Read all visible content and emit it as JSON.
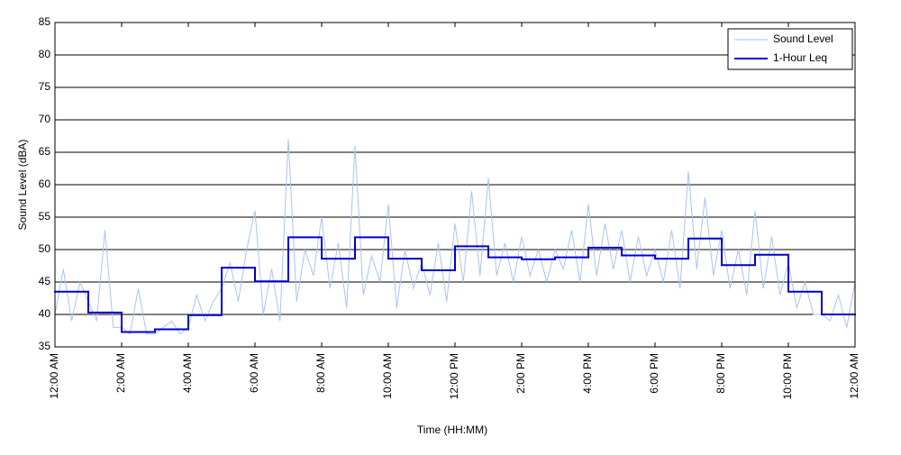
{
  "chart_data": {
    "type": "line",
    "xlabel": "Time (HH:MM)",
    "ylabel": "Sound Level (dBA)",
    "xlim": [
      0,
      24
    ],
    "xticks": [
      {
        "value": 0,
        "label": "12:00 AM"
      },
      {
        "value": 2,
        "label": "2:00 AM"
      },
      {
        "value": 4,
        "label": "4:00 AM"
      },
      {
        "value": 6,
        "label": "6:00 AM"
      },
      {
        "value": 8,
        "label": "8:00 AM"
      },
      {
        "value": 10,
        "label": "10:00 AM"
      },
      {
        "value": 12,
        "label": "12:00 PM"
      },
      {
        "value": 14,
        "label": "2:00 PM"
      },
      {
        "value": 16,
        "label": "4:00 PM"
      },
      {
        "value": 18,
        "label": "6:00 PM"
      },
      {
        "value": 20,
        "label": "8:00 PM"
      },
      {
        "value": 22,
        "label": "10:00 PM"
      },
      {
        "value": 24,
        "label": "12:00 AM"
      }
    ],
    "ylim": [
      35,
      85
    ],
    "yticks": [
      35,
      40,
      45,
      50,
      55,
      60,
      65,
      70,
      75,
      80,
      85
    ],
    "grid": true,
    "legend": "upper right",
    "series": [
      {
        "name": "Sound Level",
        "color": "#a9c3f2",
        "style": "line",
        "x": [
          0,
          0.25,
          0.5,
          0.75,
          1,
          1.25,
          1.5,
          1.75,
          2,
          2.25,
          2.5,
          2.75,
          3,
          3.25,
          3.5,
          3.75,
          4,
          4.25,
          4.5,
          4.75,
          5,
          5.25,
          5.5,
          5.75,
          6,
          6.25,
          6.5,
          6.75,
          7,
          7.25,
          7.5,
          7.75,
          8,
          8.25,
          8.5,
          8.75,
          9,
          9.25,
          9.5,
          9.75,
          10,
          10.25,
          10.5,
          10.75,
          11,
          11.25,
          11.5,
          11.75,
          12,
          12.25,
          12.5,
          12.75,
          13,
          13.25,
          13.5,
          13.75,
          14,
          14.25,
          14.5,
          14.75,
          15,
          15.25,
          15.5,
          15.75,
          16,
          16.25,
          16.5,
          16.75,
          17,
          17.25,
          17.5,
          17.75,
          18,
          18.25,
          18.5,
          18.75,
          19,
          19.25,
          19.5,
          19.75,
          20,
          20.25,
          20.5,
          20.75,
          21,
          21.25,
          21.5,
          21.75,
          22,
          22.25,
          22.5,
          22.75,
          23,
          23.25,
          23.5,
          23.75,
          24
        ],
        "values": [
          40,
          47,
          39,
          45,
          42,
          39,
          53,
          38,
          38,
          37,
          44,
          37,
          37,
          38,
          39,
          37,
          38,
          43,
          39,
          42,
          44,
          48,
          42,
          50,
          56,
          40,
          47,
          39,
          67,
          42,
          50,
          46,
          55,
          44,
          51,
          41,
          66,
          43,
          49,
          45,
          57,
          41,
          50,
          44,
          48,
          43,
          51,
          42,
          54,
          45,
          59,
          46,
          61,
          46,
          51,
          45,
          52,
          46,
          50,
          45,
          50,
          47,
          53,
          45,
          57,
          46,
          54,
          47,
          53,
          45,
          52,
          46,
          50,
          45,
          53,
          44,
          62,
          47,
          58,
          46,
          53,
          44,
          50,
          43,
          56,
          44,
          52,
          43,
          48,
          41,
          45,
          40,
          40,
          39,
          43,
          38,
          45
        ]
      },
      {
        "name": "1-Hour Leq",
        "color": "#0000cc",
        "style": "step",
        "x": [
          0,
          1,
          2,
          3,
          4,
          5,
          6,
          7,
          8,
          9,
          10,
          11,
          12,
          13,
          14,
          15,
          16,
          17,
          18,
          19,
          20,
          21,
          22,
          23
        ],
        "values": [
          43.5,
          40.3,
          37.3,
          37.7,
          39.9,
          47.2,
          45.1,
          51.9,
          48.6,
          51.9,
          48.6,
          46.8,
          50.5,
          48.8,
          48.5,
          48.8,
          50.3,
          49.1,
          48.6,
          51.7,
          47.6,
          49.2,
          43.5,
          40.0
        ]
      }
    ]
  }
}
